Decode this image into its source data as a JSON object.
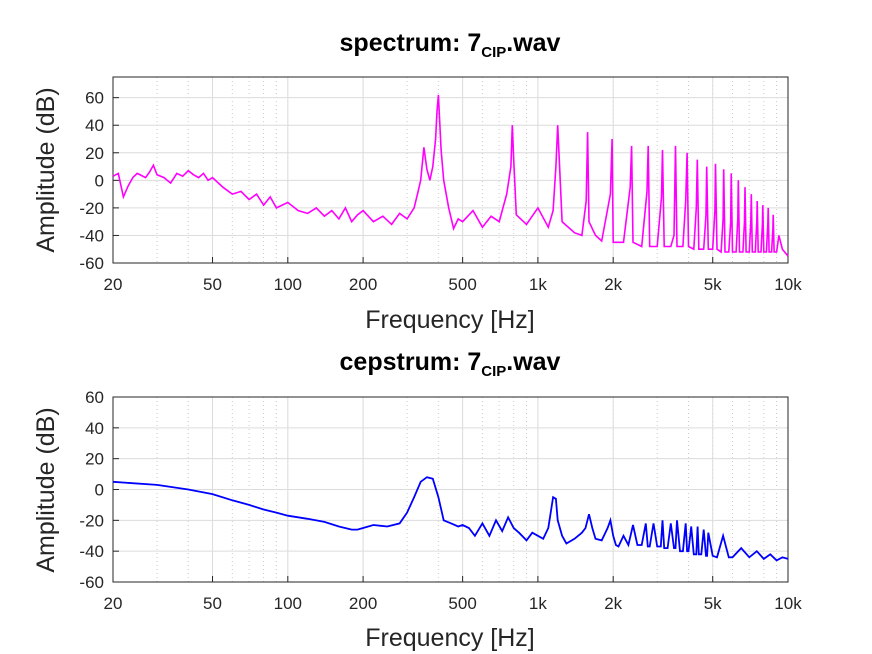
{
  "chart_data": [
    {
      "type": "line",
      "title_main": "spectrum: 7",
      "title_sub": "CIP",
      "title_tail": ".wav",
      "xlabel": "Frequency [Hz]",
      "ylabel": "Amplitude (dB)",
      "xscale": "log",
      "xlim": [
        20,
        10000
      ],
      "ylim": [
        -60,
        75
      ],
      "grid": true,
      "color": "#ff00ff",
      "x_ticks": [
        20,
        50,
        100,
        200,
        500,
        1000,
        2000,
        5000,
        10000
      ],
      "x_tick_labels": [
        "20",
        "50",
        "100",
        "200",
        "500",
        "1k",
        "2k",
        "5k",
        "10k"
      ],
      "y_ticks": [
        -60,
        -40,
        -20,
        0,
        20,
        40,
        60
      ],
      "y_tick_labels": [
        "-60",
        "-40",
        "-20",
        "0",
        "20",
        "40",
        "60"
      ],
      "series": [
        {
          "x": [
            20,
            21,
            22,
            23,
            24,
            25,
            27,
            28,
            29,
            30,
            32,
            34,
            36,
            38,
            40,
            42,
            44,
            46,
            48,
            50,
            55,
            60,
            65,
            70,
            75,
            80,
            85,
            90,
            100,
            110,
            120,
            130,
            140,
            150,
            160,
            170,
            180,
            190,
            200,
            220,
            240,
            260,
            280,
            300,
            320,
            330,
            340,
            350,
            360,
            370,
            380,
            390,
            395,
            400,
            410,
            420,
            440,
            460,
            480,
            500,
            550,
            600,
            650,
            700,
            750,
            780,
            790,
            800,
            820,
            900,
            1000,
            1100,
            1150,
            1180,
            1200,
            1250,
            1400,
            1500,
            1560,
            1580,
            1600,
            1700,
            1800,
            1950,
            1980,
            2000,
            2200,
            2340,
            2370,
            2400,
            2600,
            2730,
            2760,
            2800,
            3000,
            3120,
            3150,
            3200,
            3400,
            3500,
            3550,
            3600,
            3800,
            3900,
            3950,
            4000,
            4200,
            4300,
            4340,
            4400,
            4600,
            4700,
            4730,
            4800,
            5000,
            5100,
            5130,
            5200,
            5400,
            5500,
            5530,
            5600,
            5800,
            5900,
            5930,
            6000,
            6200,
            6300,
            6330,
            6400,
            6600,
            6700,
            6730,
            6800,
            7000,
            7100,
            7130,
            7200,
            7400,
            7500,
            7530,
            7600,
            7800,
            7900,
            7930,
            8000,
            8200,
            8300,
            8330,
            8400,
            8600,
            8700,
            8730,
            8800,
            9000,
            9200,
            9500,
            10000
          ],
          "y": [
            3,
            5,
            -12,
            -4,
            2,
            5,
            2,
            6,
            11,
            4,
            2,
            -2,
            5,
            3,
            7,
            4,
            2,
            5,
            0,
            2,
            -5,
            -10,
            -8,
            -14,
            -10,
            -18,
            -12,
            -20,
            -16,
            -22,
            -24,
            -20,
            -26,
            -22,
            -28,
            -20,
            -30,
            -25,
            -22,
            -30,
            -26,
            -32,
            -24,
            -28,
            -20,
            -10,
            0,
            24,
            8,
            0,
            10,
            30,
            50,
            62,
            22,
            0,
            -20,
            -35,
            -28,
            -30,
            -22,
            -34,
            -26,
            -30,
            -10,
            10,
            40,
            15,
            -25,
            -32,
            -20,
            -34,
            -22,
            10,
            40,
            -30,
            -38,
            -40,
            -15,
            35,
            -30,
            -40,
            -44,
            -10,
            30,
            -45,
            -45,
            -5,
            25,
            -45,
            -48,
            -8,
            25,
            -48,
            -48,
            -12,
            22,
            -48,
            -48,
            -40,
            25,
            -48,
            -48,
            -15,
            20,
            -48,
            -50,
            -20,
            15,
            -50,
            -50,
            -25,
            10,
            -50,
            -50,
            -22,
            12,
            -50,
            -52,
            -28,
            8,
            -52,
            -52,
            -30,
            5,
            -52,
            -52,
            -28,
            0,
            -52,
            -52,
            -30,
            -5,
            -52,
            -52,
            -30,
            -10,
            -52,
            -52,
            -30,
            -15,
            -52,
            -52,
            -32,
            -18,
            -52,
            -52,
            -32,
            -20,
            -52,
            -52,
            -35,
            -25,
            -52,
            -52,
            -40,
            -50,
            -55
          ]
        }
      ]
    },
    {
      "type": "line",
      "title_main": "cepstrum: 7",
      "title_sub": "CIP",
      "title_tail": ".wav",
      "xlabel": "Frequency [Hz]",
      "ylabel": "Amplitude (dB)",
      "xscale": "log",
      "xlim": [
        20,
        10000
      ],
      "ylim": [
        -60,
        60
      ],
      "grid": true,
      "color": "#0000ff",
      "x_ticks": [
        20,
        50,
        100,
        200,
        500,
        1000,
        2000,
        5000,
        10000
      ],
      "x_tick_labels": [
        "20",
        "50",
        "100",
        "200",
        "500",
        "1k",
        "2k",
        "5k",
        "10k"
      ],
      "y_ticks": [
        -60,
        -40,
        -20,
        0,
        20,
        40,
        60
      ],
      "y_tick_labels": [
        "-60",
        "-40",
        "-20",
        "0",
        "20",
        "40",
        "60"
      ],
      "series": [
        {
          "x": [
            20,
            30,
            40,
            50,
            60,
            70,
            80,
            90,
            100,
            120,
            140,
            160,
            180,
            190,
            200,
            220,
            250,
            280,
            300,
            320,
            340,
            360,
            380,
            400,
            420,
            450,
            480,
            500,
            530,
            560,
            600,
            640,
            680,
            720,
            760,
            800,
            840,
            900,
            950,
            1000,
            1050,
            1100,
            1150,
            1180,
            1200,
            1250,
            1300,
            1400,
            1500,
            1550,
            1600,
            1650,
            1700,
            1800,
            1900,
            1950,
            2000,
            2050,
            2100,
            2200,
            2300,
            2400,
            2500,
            2600,
            2700,
            2750,
            2800,
            2900,
            3000,
            3100,
            3150,
            3200,
            3300,
            3400,
            3500,
            3550,
            3600,
            3700,
            3800,
            3900,
            3950,
            4000,
            4100,
            4200,
            4300,
            4350,
            4400,
            4500,
            4600,
            4700,
            4750,
            4800,
            5000,
            5200,
            5500,
            5800,
            6000,
            6500,
            7000,
            7500,
            8000,
            8500,
            9000,
            9500,
            10000
          ],
          "y": [
            5,
            3,
            0,
            -3,
            -7,
            -10,
            -13,
            -15,
            -17,
            -19,
            -21,
            -24,
            -26,
            -26,
            -25,
            -23,
            -24,
            -22,
            -15,
            -5,
            5,
            8,
            7,
            -5,
            -20,
            -22,
            -24,
            -23,
            -25,
            -30,
            -22,
            -30,
            -20,
            -27,
            -18,
            -25,
            -28,
            -33,
            -28,
            -30,
            -32,
            -25,
            -5,
            -6,
            -20,
            -30,
            -35,
            -32,
            -28,
            -25,
            -16,
            -25,
            -32,
            -33,
            -25,
            -20,
            -30,
            -36,
            -37,
            -30,
            -36,
            -23,
            -36,
            -36,
            -22,
            -37,
            -37,
            -22,
            -37,
            -37,
            -20,
            -38,
            -38,
            -22,
            -38,
            -38,
            -20,
            -40,
            -40,
            -22,
            -40,
            -40,
            -24,
            -42,
            -42,
            -24,
            -42,
            -42,
            -26,
            -43,
            -43,
            -28,
            -43,
            -44,
            -30,
            -44,
            -44,
            -38,
            -44,
            -40,
            -45,
            -42,
            -46,
            -44,
            -45
          ]
        }
      ]
    }
  ]
}
